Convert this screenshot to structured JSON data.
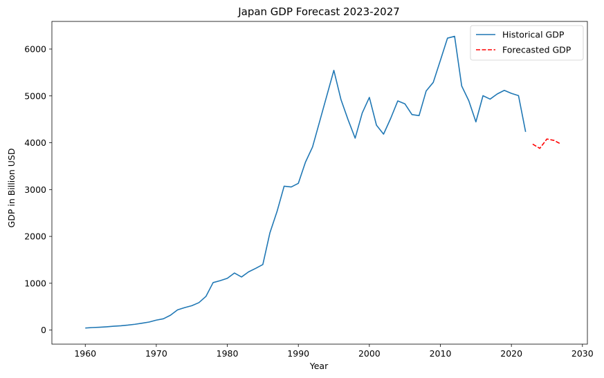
{
  "chart_data": {
    "type": "line",
    "title": "Japan GDP Forecast 2023-2027",
    "xlabel": "Year",
    "ylabel": "GDP in Billion USD",
    "xlim": [
      1955.3,
      2030.7
    ],
    "ylim": [
      -300,
      6590
    ],
    "xticks": [
      1960,
      1970,
      1980,
      1990,
      2000,
      2010,
      2020,
      2030
    ],
    "yticks": [
      0,
      1000,
      2000,
      3000,
      4000,
      5000,
      6000
    ],
    "grid": false,
    "legend": "top-right",
    "series": [
      {
        "name": "Historical GDP",
        "color": "#1f77b4",
        "style": "solid",
        "x": [
          1960,
          1961,
          1962,
          1963,
          1964,
          1965,
          1966,
          1967,
          1968,
          1969,
          1970,
          1971,
          1972,
          1973,
          1974,
          1975,
          1976,
          1977,
          1978,
          1979,
          1980,
          1981,
          1982,
          1983,
          1984,
          1985,
          1986,
          1987,
          1988,
          1989,
          1990,
          1991,
          1992,
          1993,
          1994,
          1995,
          1996,
          1997,
          1998,
          1999,
          2000,
          2001,
          2002,
          2003,
          2004,
          2005,
          2006,
          2007,
          2008,
          2009,
          2010,
          2011,
          2012,
          2013,
          2014,
          2015,
          2016,
          2017,
          2018,
          2019,
          2020,
          2021,
          2022
        ],
        "y": [
          44,
          54,
          61,
          70,
          82,
          92,
          106,
          124,
          147,
          172,
          213,
          241,
          318,
          432,
          480,
          521,
          586,
          721,
          1014,
          1055,
          1105,
          1218,
          1134,
          1244,
          1318,
          1399,
          2078,
          2532,
          3072,
          3055,
          3133,
          3584,
          3909,
          4454,
          4999,
          5546,
          4923,
          4492,
          4098,
          4636,
          4968,
          4375,
          4183,
          4519,
          4893,
          4831,
          4601,
          4579,
          5106,
          5289,
          5759,
          6233,
          6272,
          5212,
          4897,
          4445,
          5004,
          4931,
          5041,
          5118,
          5054,
          5006,
          4232
        ]
      },
      {
        "name": "Forecasted GDP",
        "color": "#ff0000",
        "style": "dashed",
        "x": [
          2023,
          2024,
          2025,
          2026,
          2027
        ],
        "y": [
          3970,
          3880,
          4080,
          4050,
          3970
        ]
      }
    ]
  }
}
